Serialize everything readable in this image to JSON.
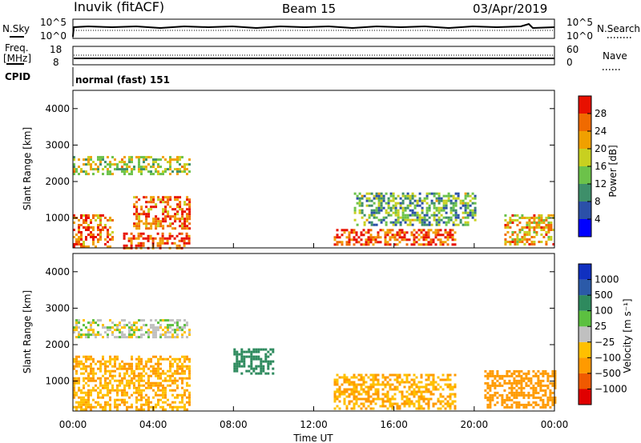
{
  "header": {
    "station": "Inuvik (fitACF)",
    "beam": "Beam 15",
    "date": "03/Apr/2019"
  },
  "noise_panel": {
    "left_label": "N.Sky",
    "left_ticks": [
      "10^5",
      "10^0"
    ],
    "right_label": "N.Search",
    "right_ticks": [
      "10^5",
      "10^0"
    ]
  },
  "freq_panel": {
    "left_label_1": "Freq.",
    "left_label_2": "[MHz]",
    "left_ticks": [
      "18",
      "8"
    ],
    "right_label": "Nave",
    "right_ticks": [
      "60",
      "0"
    ]
  },
  "cpid_panel": {
    "label": "CPID",
    "text": "normal (fast) 151"
  },
  "colors": {
    "power_scale": [
      "#0000ff",
      "#2b50a8",
      "#3e8f6a",
      "#6cc24a",
      "#c8d020",
      "#f0a000",
      "#f06a00",
      "#e81000"
    ],
    "velocity_scale": [
      "#e00000",
      "#f05a00",
      "#ff9a00",
      "#ffc000",
      "#c0c0c0",
      "#5cc040",
      "#2e8a5e",
      "#2b5aa8",
      "#1030c0"
    ]
  },
  "chart_data": [
    {
      "type": "heatmap",
      "title": "",
      "xlabel": "",
      "ylabel": "Slant Range [km]",
      "x_ticks": [
        "00:00",
        "04:00",
        "08:00",
        "12:00",
        "16:00",
        "20:00",
        "00:00"
      ],
      "y_ticks": [
        "1000",
        "2000",
        "3000",
        "4000"
      ],
      "ylim": [
        180,
        4500
      ],
      "colorbar": {
        "label": "Power [dB]",
        "ticks": [
          "4",
          "8",
          "12",
          "16",
          "20",
          "24",
          "28"
        ],
        "range": [
          0,
          30
        ]
      },
      "echo_regions": [
        {
          "t_start": 0.0,
          "t_end": 2.0,
          "r_start": 200,
          "r_end": 1100,
          "level": 24
        },
        {
          "t_start": 2.5,
          "t_end": 5.8,
          "r_start": 200,
          "r_end": 600,
          "level": 26
        },
        {
          "t_start": 3.0,
          "t_end": 5.8,
          "r_start": 700,
          "r_end": 1600,
          "level": 24
        },
        {
          "t_start": 0.0,
          "t_end": 5.8,
          "r_start": 2200,
          "r_end": 2700,
          "level": 16
        },
        {
          "t_start": 13.0,
          "t_end": 19.0,
          "r_start": 250,
          "r_end": 700,
          "level": 26
        },
        {
          "t_start": 14.0,
          "t_end": 20.0,
          "r_start": 800,
          "r_end": 1700,
          "level": 12
        },
        {
          "t_start": 21.5,
          "t_end": 24.0,
          "r_start": 300,
          "r_end": 1100,
          "level": 20
        }
      ]
    },
    {
      "type": "heatmap",
      "title": "",
      "xlabel": "Time UT",
      "ylabel": "Slant Range [km]",
      "x_ticks": [
        "00:00",
        "04:00",
        "08:00",
        "12:00",
        "16:00",
        "20:00",
        "00:00"
      ],
      "y_ticks": [
        "1000",
        "2000",
        "3000",
        "4000"
      ],
      "ylim": [
        180,
        4500
      ],
      "colorbar": {
        "label": "Velocity [m s⁻¹]",
        "ticks": [
          "1000",
          "500",
          "100",
          "25",
          "−25",
          "−100",
          "−500",
          "−1000"
        ]
      },
      "echo_regions": [
        {
          "t_start": 0.0,
          "t_end": 5.8,
          "r_start": 200,
          "r_end": 1700,
          "level": -100
        },
        {
          "t_start": 0.0,
          "t_end": 5.8,
          "r_start": 2200,
          "r_end": 2700,
          "level": 0
        },
        {
          "t_start": 8.0,
          "t_end": 10.0,
          "r_start": 1200,
          "r_end": 1900,
          "level": 300
        },
        {
          "t_start": 13.0,
          "t_end": 19.0,
          "r_start": 250,
          "r_end": 1200,
          "level": -100
        },
        {
          "t_start": 20.5,
          "t_end": 24.0,
          "r_start": 250,
          "r_end": 1300,
          "level": -300
        }
      ]
    }
  ]
}
